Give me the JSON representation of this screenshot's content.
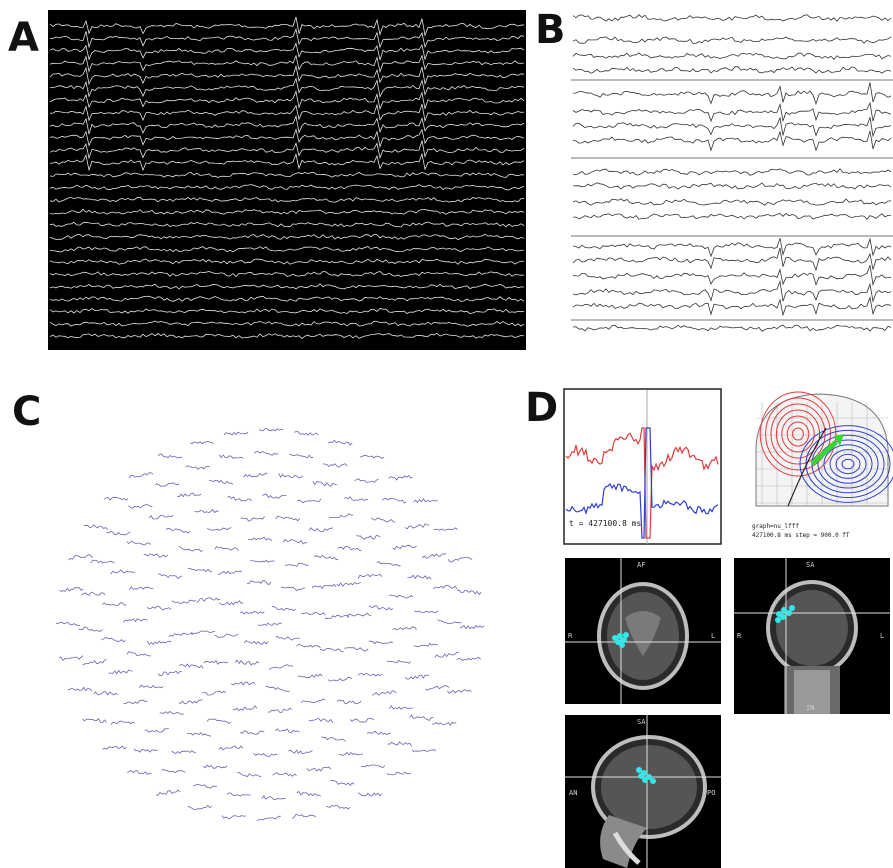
{
  "panels": {
    "a": {
      "label": "A"
    },
    "b": {
      "label": "B"
    },
    "c": {
      "label": "C"
    },
    "d": {
      "label": "D"
    }
  },
  "d_waveform": {
    "readout": "t = 427100.8 ms"
  },
  "d_contour": {
    "caption_line1": "graph=nu_lfff",
    "caption_line2": "427100.8 ms  step = 900.0  fT"
  },
  "mri": {
    "axial": {
      "top": "AF",
      "left": "R",
      "right": "L"
    },
    "coronal": {
      "top": "SA",
      "left": "R",
      "right": "L",
      "bottom": "IN"
    },
    "sagittal": {
      "top": "SA",
      "left": "AN",
      "right": "PO"
    }
  },
  "colors": {
    "trace_dark": "#e6e6e6",
    "trace_light": "#333333",
    "topo_trace": "#6a63b5",
    "red": "#e23b3b",
    "blue": "#2f3fcf",
    "dipole": "#35e6e6",
    "arrow": "#37d637"
  }
}
